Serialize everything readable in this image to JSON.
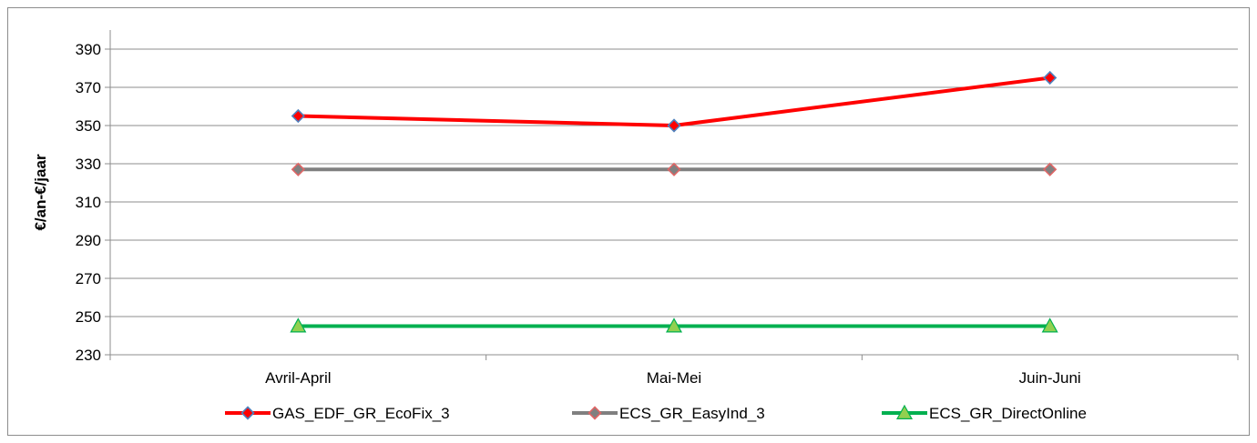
{
  "chart_data": {
    "type": "line",
    "title": "",
    "xlabel": "",
    "ylabel": "€/an-€/jaar",
    "categories": [
      "Avril-April",
      "Mai-Mei",
      "Juin-Juni"
    ],
    "ylim": [
      230,
      400
    ],
    "yticks": [
      230,
      250,
      270,
      290,
      310,
      330,
      350,
      370,
      390
    ],
    "grid": "horizontal",
    "legend_position": "bottom",
    "series": [
      {
        "name": "GAS_EDF_GR_EcoFix_3",
        "values": [
          355,
          350,
          375
        ],
        "color": "#ff0000",
        "marker": "diamond",
        "marker_fill": "#ff0000",
        "marker_stroke": "#4f81bd"
      },
      {
        "name": "ECS_GR_EasyInd_3",
        "values": [
          327,
          327,
          327
        ],
        "color": "#808080",
        "marker": "diamond",
        "marker_fill": "#808080",
        "marker_stroke": "#e06666"
      },
      {
        "name": "ECS_GR_DirectOnline",
        "values": [
          245,
          245,
          245
        ],
        "color": "#00b050",
        "marker": "triangle",
        "marker_fill": "#92d050",
        "marker_stroke": "#00b050"
      }
    ]
  }
}
